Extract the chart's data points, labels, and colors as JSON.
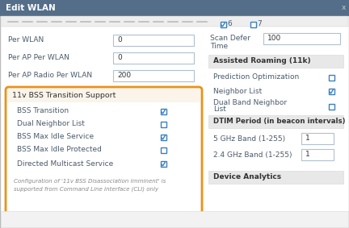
{
  "title": "Edit WLAN",
  "title_bg": "#546e8a",
  "title_color": "#ffffff",
  "bg_color": "#f5f5f5",
  "panel_bg": "#ffffff",
  "border_color": "#bbbbbb",
  "left_labels": [
    "Per WLAN",
    "Per AP Per WLAN",
    "Per AP Radio Per WLAN"
  ],
  "left_values": [
    "0",
    "0",
    "200"
  ],
  "section_11v_title": "11v BSS Transition Support",
  "section_11v_border": "#e8921a",
  "section_11v_header_bg": "#faf4eb",
  "checkboxes_11v": [
    {
      "label": "BSS Transition",
      "checked": true
    },
    {
      "label": "Dual Neighbor List",
      "checked": false
    },
    {
      "label": "BSS Max Idle Service",
      "checked": true
    },
    {
      "label": "BSS Max Idle Protected",
      "checked": false
    },
    {
      "label": "Directed Multicast Service",
      "checked": true
    }
  ],
  "note_text1": "Configuration of '11v BSS Disassociation Imminent' is",
  "note_text2": "supported from Command Line Interface (CLI) only",
  "scan_defer_label1": "Scan Defer",
  "scan_defer_label2": "Time",
  "scan_defer_value": "100",
  "section_11k_title": "Assisted Roaming (11k)",
  "checkboxes_11k": [
    {
      "label": "Prediction Optimization",
      "checked": false
    },
    {
      "label": "Neighbor List",
      "checked": true
    },
    {
      "label": "Dual Band Neighbor",
      "label2": "List",
      "checked": false
    }
  ],
  "section_dtim_title": "DTIM Period (in beacon intervals)",
  "dtim_labels": [
    "5 GHz Band (1-255)",
    "2.4 GHz Band (1-255)"
  ],
  "dtim_values": [
    "1",
    "1"
  ],
  "section_device_title": "Device Analytics",
  "text_color": "#5a6a7a",
  "label_color": "#4a5a6a",
  "section_header_bg": "#e8e8e8",
  "section_header_color": "#333333",
  "checkbox_color": "#3a80c0",
  "input_border": "#b0c0d0",
  "input_bg": "#ffffff",
  "divider_color": "#dddddd",
  "top_bar_bg": "#e8e8e8",
  "top_bar_border": "#cccccc"
}
